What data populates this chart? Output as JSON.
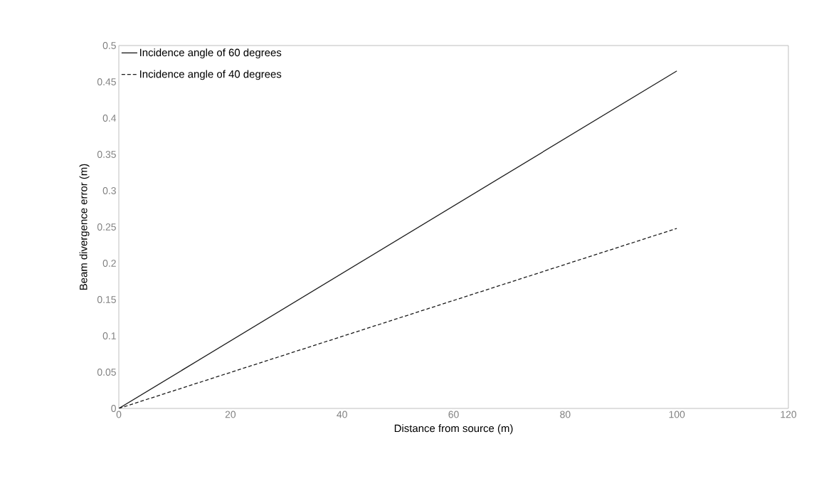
{
  "chart_data": {
    "type": "line",
    "xlabel": "Distance from source (m)",
    "ylabel": "Beam divergence error (m)",
    "x": [
      0,
      100
    ],
    "series": [
      {
        "name": "Incidence angle of 60 degrees",
        "color": "#1a1a1a",
        "values": [
          0,
          0.465
        ],
        "line_style": "solid"
      },
      {
        "name": "Incidence angle of 40 degrees",
        "color": "#1a1a1a",
        "values": [
          0,
          0.248
        ],
        "line_style": "dashed"
      }
    ],
    "xlim": [
      0,
      120
    ],
    "xticks": [
      0,
      20,
      40,
      60,
      80,
      100,
      120
    ],
    "ylim": [
      0,
      0.5
    ],
    "yticks": [
      0,
      0.05,
      0.1,
      0.15,
      0.2,
      0.25,
      0.3,
      0.35,
      0.4,
      0.45,
      0.5
    ],
    "grid": false,
    "legend": "top left",
    "marker": "none"
  }
}
